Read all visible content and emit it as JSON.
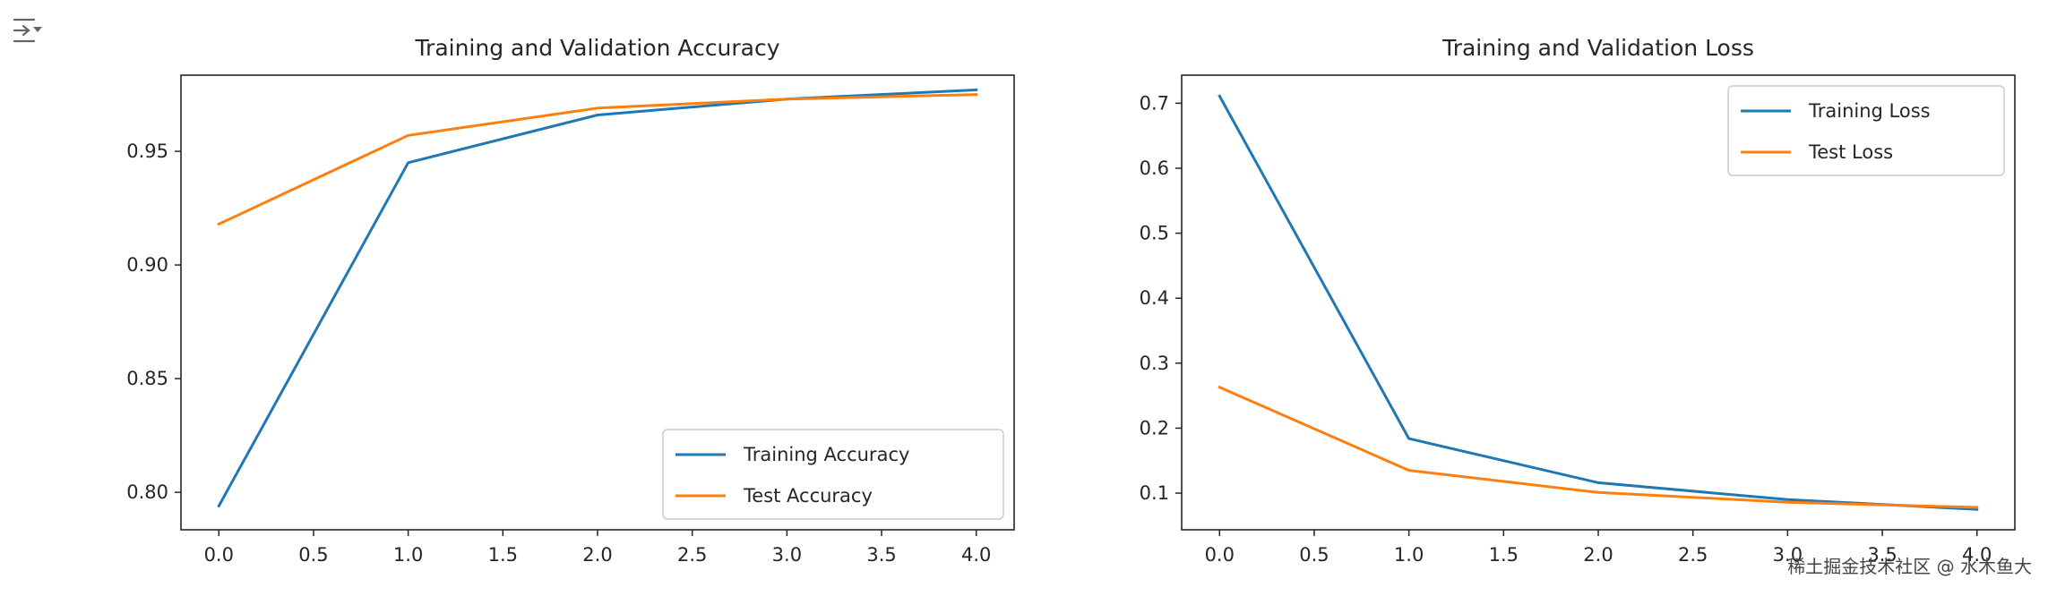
{
  "toolbar": {
    "toggle_icon": "output-collapse-icon"
  },
  "watermark": "稀土掘金技术社区 @ 水木鱼大",
  "chart_data": [
    {
      "type": "line",
      "title": "Training and Validation Accuracy",
      "xlabel": "",
      "ylabel": "",
      "x": [
        0,
        1,
        2,
        3,
        4
      ],
      "xticks": [
        0.0,
        0.5,
        1.0,
        1.5,
        2.0,
        2.5,
        3.0,
        3.5,
        4.0
      ],
      "xtick_labels": [
        "0.0",
        "0.5",
        "1.0",
        "1.5",
        "2.0",
        "2.5",
        "3.0",
        "3.5",
        "4.0"
      ],
      "xlim": [
        -0.2,
        4.2
      ],
      "yticks": [
        0.8,
        0.85,
        0.9,
        0.95
      ],
      "ytick_labels": [
        "0.80",
        "0.85",
        "0.90",
        "0.95"
      ],
      "ylim": [
        0.7835,
        0.9835
      ],
      "legend_loc": "lower-right",
      "series": [
        {
          "name": "Training Accuracy",
          "color": "#1f77b4",
          "values": [
            0.794,
            0.945,
            0.966,
            0.973,
            0.977
          ]
        },
        {
          "name": "Test Accuracy",
          "color": "#ff7f0e",
          "values": [
            0.918,
            0.957,
            0.969,
            0.973,
            0.975
          ]
        }
      ]
    },
    {
      "type": "line",
      "title": "Training and Validation Loss",
      "xlabel": "",
      "ylabel": "",
      "x": [
        0,
        1,
        2,
        3,
        4
      ],
      "xticks": [
        0.0,
        0.5,
        1.0,
        1.5,
        2.0,
        2.5,
        3.0,
        3.5,
        4.0
      ],
      "xtick_labels": [
        "0.0",
        "0.5",
        "1.0",
        "1.5",
        "2.0",
        "2.5",
        "3.0",
        "3.5",
        "4.0"
      ],
      "xlim": [
        -0.2,
        4.2
      ],
      "yticks": [
        0.1,
        0.2,
        0.3,
        0.4,
        0.5,
        0.6,
        0.7
      ],
      "ytick_labels": [
        "0.1",
        "0.2",
        "0.3",
        "0.4",
        "0.5",
        "0.6",
        "0.7"
      ],
      "ylim": [
        0.0436,
        0.7432
      ],
      "legend_loc": "upper-right",
      "series": [
        {
          "name": "Training Loss",
          "color": "#1f77b4",
          "values": [
            0.711,
            0.184,
            0.116,
            0.09,
            0.075
          ]
        },
        {
          "name": "Test Loss",
          "color": "#ff7f0e",
          "values": [
            0.263,
            0.135,
            0.101,
            0.086,
            0.078
          ]
        }
      ]
    }
  ]
}
